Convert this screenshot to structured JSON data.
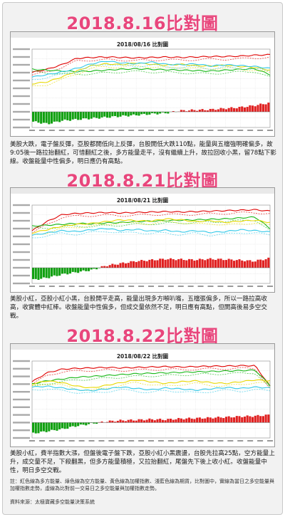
{
  "panels": [
    {
      "heading": "2018.8.16比對圖",
      "chart_title": "2018/08/16 比對圖",
      "description": "美股大跌，電子盤反彈，亞股都開低向上反彈，台股開低大跌110點，能量與五檔強明確偏多，故9:05後一路拉抬翻紅，可惜翻紅之後，多方能量走平，沒有繼續上升，故拉回收小黑，留78點下影線。收盤能量中性偏多，明日應仍有高點。"
    },
    {
      "heading": "2018.8.21比對圖",
      "chart_title": "2018/08/21 比對圖",
      "description": "美股小紅，亞股小紅小黑，台股開平走高，能量出現多方噸叭嘴，五檔張偏多，所以一路拉高收高，收實體中紅棒。收盤能量中性偏多，但成交量依然不足，明日應有高點，但開高後易多空交戰。"
    },
    {
      "heading": "2018.8.22比對圖",
      "chart_title": "2018/08/22 比對圖",
      "description": "美股小紅，費半指數大漲，但盤後電子盤下跌，亞股小紅小黑震盪，台股先拉高25點，空方能量上升，成交量不足，下殺翻黑，但多方能量積極，又拉抬翻紅，尾盤先下後上收小紅。收盤能量中性，明日多空交戰。"
    }
  ],
  "note": "註：紅色線為多方能量、綠色線為空方能量、黃色線為加權指數、淺藍色線為期貨，比對圖中，實線為當日之多空能量與加權指數走勢，虛線為比對前一交易日之多空能量與加權指數走勢。",
  "source": "資料來源：太極寶藏多空能量決策系統",
  "chart_data": [
    {
      "type": "line",
      "title": "2018/08/16 比對圖",
      "series_colors": {
        "long_energy": "#e00000",
        "short_energy": "#18b818",
        "taiex": "#e8d800",
        "futures": "#30c8e8"
      },
      "series": [
        {
          "values_long": [
            0.55,
            0.62,
            0.72,
            0.86,
            0.88,
            0.89,
            0.88,
            0.87,
            0.88,
            0.89,
            0.88,
            0.89,
            0.9,
            0.9,
            0.91,
            0.93,
            0.94
          ]
        },
        {
          "values_short": [
            0.62,
            0.6,
            0.58,
            0.57,
            0.58,
            0.6,
            0.62,
            0.63,
            0.62,
            0.61,
            0.6,
            0.59,
            0.58,
            0.6,
            0.62,
            0.63,
            0.5
          ]
        },
        {
          "values_taiex": [
            0.3,
            0.34,
            0.45,
            0.58,
            0.7,
            0.74,
            0.72,
            0.76,
            0.73,
            0.71,
            0.73,
            0.7,
            0.69,
            0.71,
            0.68,
            0.66,
            0.6
          ]
        },
        {
          "values_futures": [
            0.45,
            0.5,
            0.56,
            0.64,
            0.74,
            0.8,
            0.76,
            0.74,
            0.78,
            0.73,
            0.72,
            0.74,
            0.69,
            0.72,
            0.7,
            0.68,
            0.64
          ]
        }
      ],
      "bars": [
        -0.45,
        -0.55,
        -0.4,
        -0.35,
        -0.3,
        -0.25,
        -0.2,
        -0.15,
        -0.1,
        -0.06,
        0.05,
        0.08,
        0.1,
        0.15,
        0.2,
        0.28,
        0.4
      ]
    },
    {
      "type": "line",
      "title": "2018/08/21 比對圖",
      "series_colors": {
        "long_energy": "#e00000",
        "short_energy": "#18b818",
        "taiex": "#e8d800",
        "futures": "#30c8e8"
      },
      "series": [
        {
          "values_long": [
            0.5,
            0.7,
            0.85,
            0.88,
            0.89,
            0.9,
            0.89,
            0.9,
            0.91,
            0.92,
            0.91,
            0.92,
            0.93,
            0.94,
            0.95,
            0.96,
            0.93
          ]
        },
        {
          "values_short": [
            0.6,
            0.62,
            0.64,
            0.66,
            0.65,
            0.67,
            0.68,
            0.7,
            0.71,
            0.72,
            0.73,
            0.74,
            0.75,
            0.76,
            0.78,
            0.8,
            0.55
          ]
        },
        {
          "values_taiex": [
            0.45,
            0.52,
            0.6,
            0.64,
            0.66,
            0.7,
            0.74,
            0.72,
            0.71,
            0.76,
            0.74,
            0.7,
            0.72,
            0.68,
            0.71,
            0.73,
            0.68
          ]
        },
        {
          "values_futures": [
            0.4,
            0.45,
            0.5,
            0.48,
            0.52,
            0.55,
            0.5,
            0.53,
            0.49,
            0.51,
            0.47,
            0.5,
            0.46,
            0.48,
            0.52,
            0.5,
            0.47
          ]
        }
      ],
      "bars": [
        -0.55,
        -0.45,
        -0.3,
        -0.2,
        -0.1,
        0.1,
        0.2,
        0.3,
        0.35,
        0.4,
        0.38,
        0.36,
        0.4,
        0.38,
        0.35,
        0.3,
        0.42
      ]
    },
    {
      "type": "line",
      "title": "2018/08/22 比對圖",
      "series_colors": {
        "long_energy": "#e00000",
        "short_energy": "#18b818",
        "taiex": "#e8d800",
        "futures": "#30c8e8"
      },
      "series": [
        {
          "values_long": [
            0.6,
            0.8,
            0.88,
            0.9,
            0.91,
            0.92,
            0.91,
            0.92,
            0.93,
            0.94,
            0.93,
            0.94,
            0.95,
            0.95,
            0.96,
            0.96,
            0.5
          ]
        },
        {
          "values_short": [
            0.55,
            0.62,
            0.66,
            0.7,
            0.72,
            0.74,
            0.76,
            0.78,
            0.79,
            0.8,
            0.81,
            0.82,
            0.83,
            0.84,
            0.85,
            0.86,
            0.52
          ]
        },
        {
          "values_taiex": [
            0.55,
            0.62,
            0.58,
            0.5,
            0.46,
            0.52,
            0.58,
            0.64,
            0.6,
            0.56,
            0.6,
            0.62,
            0.58,
            0.56,
            0.6,
            0.64,
            0.62
          ]
        },
        {
          "values_futures": [
            0.48,
            0.5,
            0.46,
            0.42,
            0.4,
            0.44,
            0.48,
            0.45,
            0.42,
            0.46,
            0.44,
            0.41,
            0.44,
            0.47,
            0.45,
            0.48,
            0.46
          ]
        }
      ],
      "bars": [
        -0.5,
        -0.4,
        -0.3,
        -0.15,
        -0.05,
        0.05,
        0.1,
        0.12,
        0.15,
        0.14,
        0.18,
        0.2,
        0.22,
        0.25,
        0.28,
        0.3,
        0.35
      ]
    }
  ]
}
